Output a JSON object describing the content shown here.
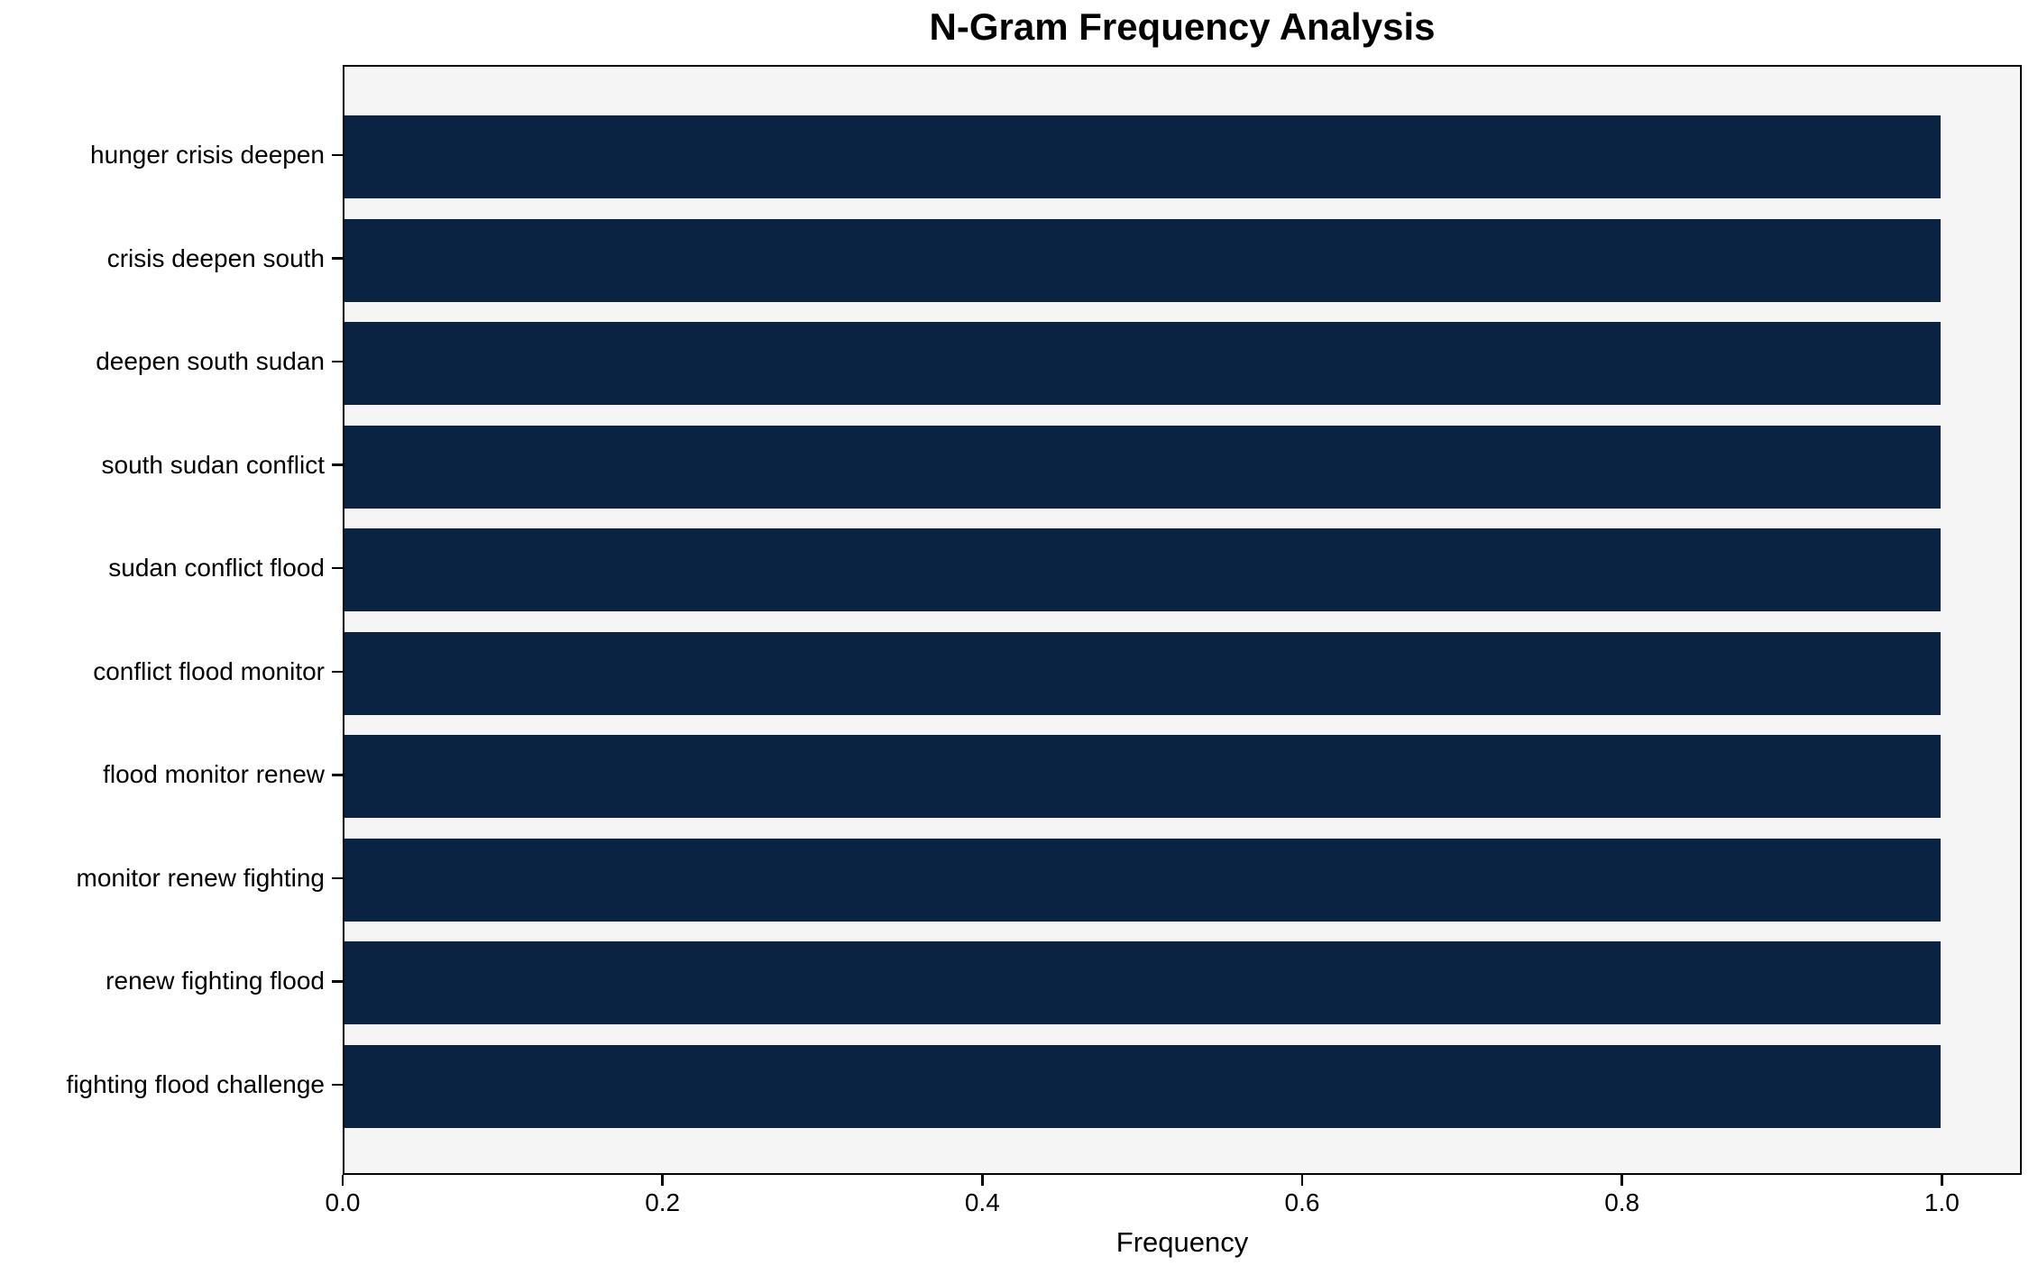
{
  "chart_data": {
    "type": "bar",
    "orientation": "horizontal",
    "title": "N-Gram Frequency Analysis",
    "xlabel": "Frequency",
    "ylabel": "",
    "categories": [
      "hunger crisis deepen",
      "crisis deepen south",
      "deepen south sudan",
      "south sudan conflict",
      "sudan conflict flood",
      "conflict flood monitor",
      "flood monitor renew",
      "monitor renew fighting",
      "renew fighting flood",
      "fighting flood challenge"
    ],
    "values": [
      1.0,
      1.0,
      1.0,
      1.0,
      1.0,
      1.0,
      1.0,
      1.0,
      1.0,
      1.0
    ],
    "xlim": [
      0,
      1.05
    ],
    "xticks": [
      0.0,
      0.2,
      0.4,
      0.6,
      0.8,
      1.0
    ],
    "xtick_labels": [
      "0.0",
      "0.2",
      "0.4",
      "0.6",
      "0.8",
      "1.0"
    ],
    "grid": false,
    "legend": null,
    "bar_color": "#0a2342",
    "plot_bg": "#f5f5f5",
    "figure_bg": "#ffffff",
    "spine_color": "#000000",
    "text_color": "#000000"
  }
}
